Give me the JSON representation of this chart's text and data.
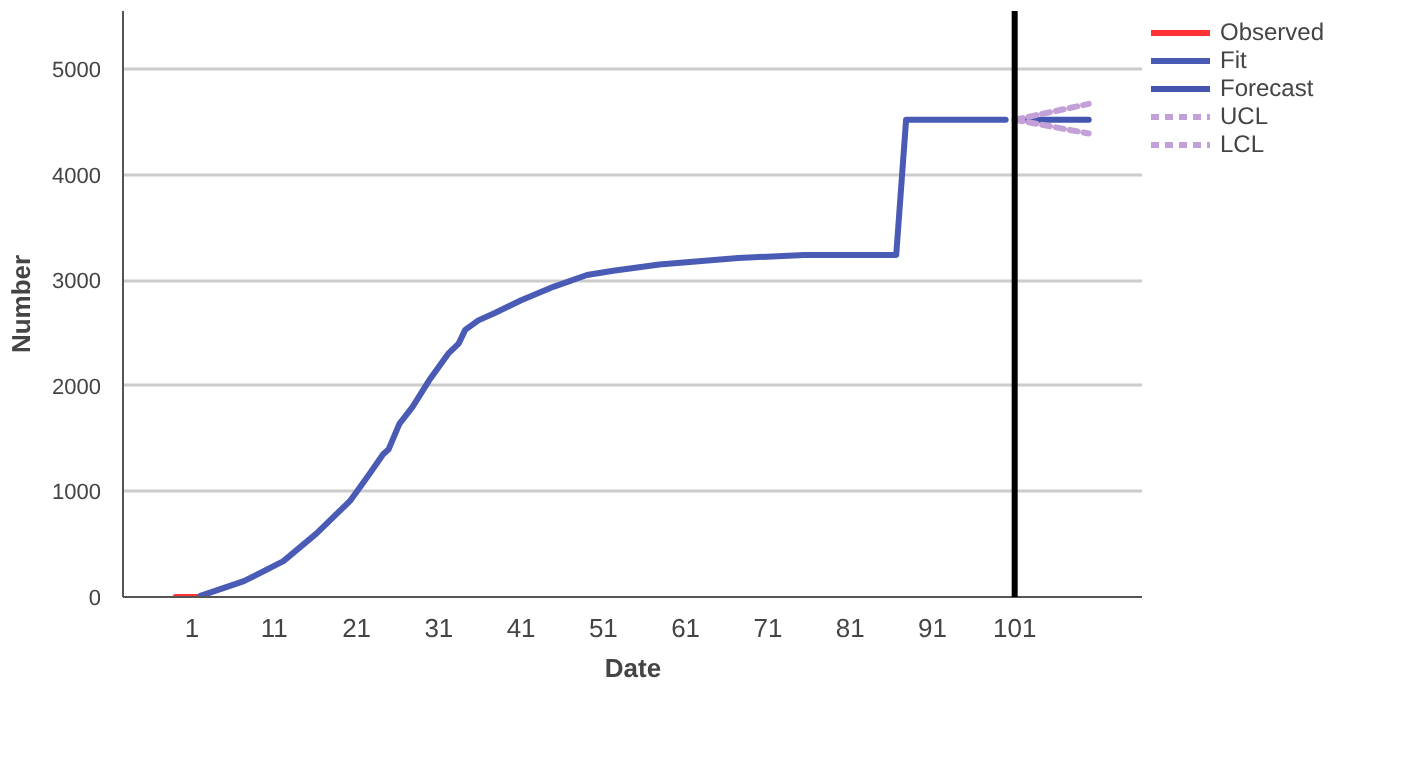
{
  "chart_data": {
    "type": "line",
    "xlabel": "Date",
    "ylabel": "Number",
    "xlim": [
      -7.4,
      116.6
    ],
    "ylim": [
      0,
      5550
    ],
    "xticks": [
      1,
      11,
      21,
      31,
      41,
      51,
      61,
      71,
      81,
      91,
      101
    ],
    "yticks": [
      0,
      1000,
      2000,
      3000,
      4000,
      5000
    ],
    "grid": "y",
    "legend": "top right",
    "marker": "none",
    "ref_lines": [
      {
        "axis": "x",
        "value": 101,
        "color": "#000000"
      }
    ],
    "series": [
      {
        "name": "Observed",
        "color": "#ff3333",
        "line_style": "solid",
        "x": [
          -1,
          0,
          1,
          2
        ],
        "values": [
          0,
          0,
          0,
          0
        ]
      },
      {
        "name": "Fit",
        "color": "#4a5bb5",
        "line_style": "solid",
        "x": [
          2,
          7.3,
          12.1,
          16.1,
          20.2,
          22.6,
          24.2,
          24.9,
          26.2,
          27.8,
          29.8,
          32.2,
          33.4,
          34.2,
          35.8,
          37.8,
          41,
          45,
          49,
          52.2,
          57.8,
          67.4,
          75.4,
          86.6,
          87.8,
          99.9
        ],
        "values": [
          10,
          150,
          340,
          600,
          910,
          1170,
          1350,
          1400,
          1640,
          1800,
          2050,
          2310,
          2400,
          2530,
          2620,
          2690,
          2810,
          2940,
          3050,
          3090,
          3150,
          3210,
          3240,
          3240,
          4520,
          4520
        ]
      },
      {
        "name": "Forecast",
        "color": "#4455b0",
        "line_style": "solid",
        "x": [
          101,
          110
        ],
        "values": [
          4520,
          4520
        ]
      },
      {
        "name": "UCL",
        "color": "#c3a0d8",
        "line_style": "dashed",
        "x": [
          101,
          110
        ],
        "values": [
          4520,
          4670
        ]
      },
      {
        "name": "LCL",
        "color": "#c3a0d8",
        "line_style": "dashed",
        "x": [
          101,
          110
        ],
        "values": [
          4520,
          4390
        ]
      }
    ]
  }
}
